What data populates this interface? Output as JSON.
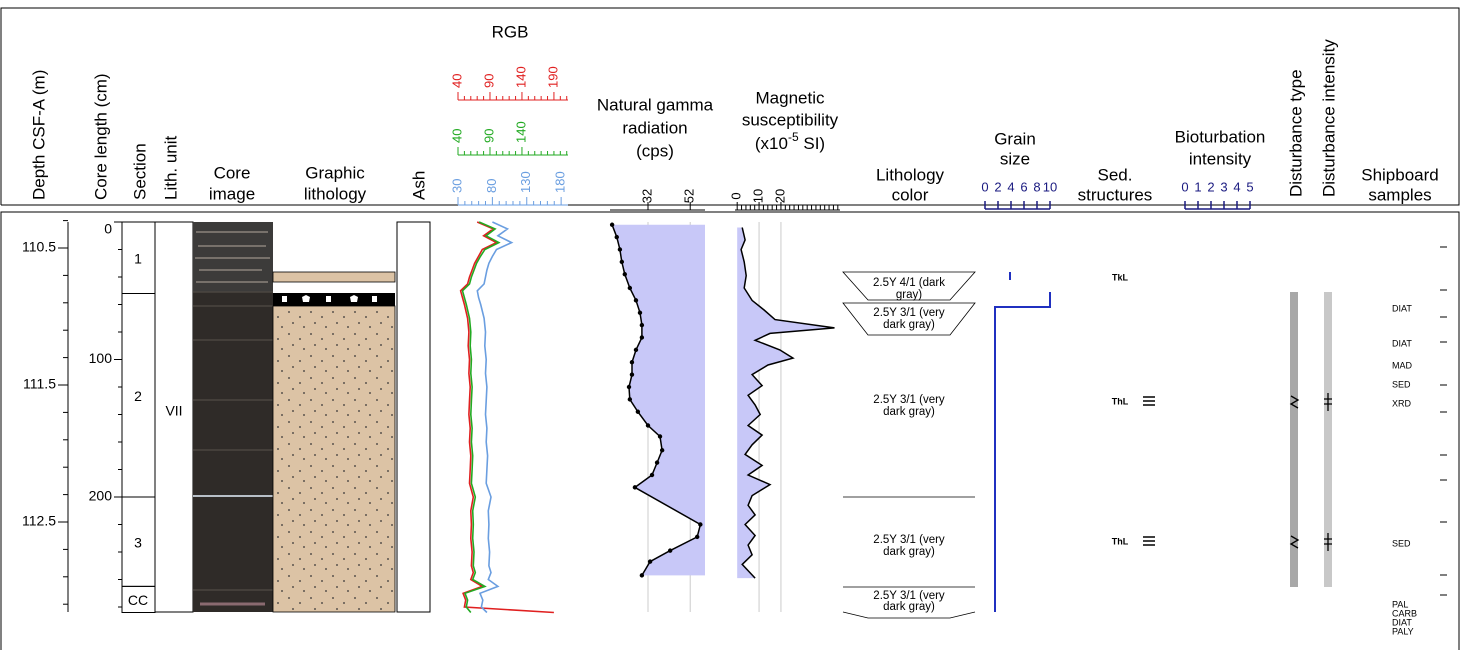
{
  "header": {
    "depth": "Depth CSF-A (m)",
    "core_length": "Core length (cm)",
    "section": "Section",
    "lith_unit": "Lith. unit",
    "core_image": [
      "Core",
      "image"
    ],
    "graphic_lithology": [
      "Graphic",
      "lithology"
    ],
    "ash": "Ash",
    "rgb": "RGB",
    "gamma": [
      "Natural gamma",
      "radiation",
      "(cps)"
    ],
    "ms": [
      "Magnetic",
      "susceptibility"
    ],
    "ms_unit": {
      "prefix": "(x10",
      "exponent": "-5",
      "suffix": " SI)"
    },
    "lithology_color": [
      "Lithology",
      "color"
    ],
    "grain_size": [
      "Grain",
      "size"
    ],
    "sed_structures": [
      "Sed.",
      "structures"
    ],
    "bioturbation": [
      "Bioturbation",
      "intensity"
    ],
    "disturbance_type": "Disturbance type",
    "disturbance_intensity": "Disturbance intensity",
    "shipboard_samples": [
      "Shipboard",
      "samples"
    ]
  },
  "depth_axis": {
    "ticks": [
      110.5,
      111.5,
      112.5
    ],
    "minor_ticks": [
      110.3,
      110.7,
      110.9,
      111.1,
      111.3,
      111.7,
      111.9,
      112.1,
      112.3,
      112.7,
      112.9,
      113.1
    ]
  },
  "core_length_axis": {
    "ticks": [
      0,
      100,
      200
    ],
    "minor_ticks": [
      20,
      40,
      60,
      80,
      120,
      140,
      160,
      180,
      220,
      240,
      260,
      280
    ]
  },
  "sections": [
    {
      "name": "1",
      "top_cm": 0,
      "bottom_cm": 52
    },
    {
      "name": "2",
      "top_cm": 52,
      "bottom_cm": 200
    },
    {
      "name": "3",
      "top_cm": 200,
      "bottom_cm": 265
    },
    {
      "name": "CC",
      "top_cm": 265,
      "bottom_cm": 284
    }
  ],
  "lith_unit": {
    "name": "VII"
  },
  "rgb": {
    "depth_cm": [
      0,
      5,
      10,
      15,
      20,
      25,
      30,
      35,
      40,
      45,
      50,
      55,
      60,
      70,
      80,
      90,
      100,
      110,
      120,
      130,
      140,
      150,
      160,
      170,
      180,
      190,
      200,
      210,
      220,
      230,
      240,
      250,
      255,
      260,
      265,
      270,
      275,
      280,
      284
    ],
    "channels": [
      {
        "name": "red",
        "color": "#e02020",
        "lim": [
          40,
          212
        ],
        "ticks": [
          40,
          90,
          140,
          190
        ],
        "minor_ticks": [
          50,
          60,
          70,
          80,
          100,
          110,
          120,
          130,
          150,
          160,
          170,
          180,
          200,
          210
        ],
        "values": [
          70,
          95,
          80,
          100,
          78,
          72,
          66,
          62,
          58,
          55,
          44,
          47,
          50,
          55,
          57,
          56,
          58,
          57,
          59,
          58,
          57,
          59,
          58,
          60,
          59,
          58,
          64,
          60,
          61,
          60,
          62,
          61,
          64,
          60,
          78,
          48,
          52,
          50,
          190
        ]
      },
      {
        "name": "green",
        "color": "#22aa22",
        "lim": [
          40,
          212
        ],
        "ticks": [
          40,
          90,
          140
        ],
        "minor_ticks": [
          50,
          60,
          70,
          80,
          100,
          110,
          120,
          130,
          150,
          160,
          170,
          180,
          190,
          200,
          210
        ],
        "values": [
          73,
          98,
          84,
          104,
          82,
          75,
          69,
          65,
          61,
          58,
          47,
          50,
          53,
          58,
          60,
          59,
          61,
          60,
          62,
          61,
          60,
          62,
          61,
          63,
          62,
          61,
          67,
          63,
          64,
          63,
          65,
          64,
          67,
          63,
          82,
          51,
          55,
          53,
          60
        ]
      },
      {
        "name": "blue",
        "color": "#6a9ee0",
        "lim": [
          30,
          190
        ],
        "ticks": [
          30,
          80,
          130,
          180
        ],
        "minor_ticks": [
          40,
          50,
          60,
          70,
          90,
          100,
          110,
          120,
          140,
          150,
          160,
          170
        ],
        "values": [
          80,
          102,
          88,
          108,
          86,
          80,
          75,
          72,
          70,
          68,
          58,
          60,
          63,
          68,
          70,
          69,
          71,
          70,
          72,
          71,
          70,
          72,
          71,
          73,
          72,
          71,
          78,
          74,
          75,
          74,
          76,
          75,
          78,
          74,
          88,
          62,
          66,
          64,
          72
        ]
      }
    ]
  },
  "gamma": {
    "xlim": [
      14,
      59
    ],
    "ticks": [
      32,
      52
    ],
    "fill": "#c8c8f8",
    "depth_cm": [
      2,
      11,
      20,
      29,
      38,
      48,
      57,
      66,
      75,
      84,
      93,
      102,
      111,
      120,
      129,
      138,
      148,
      156,
      166,
      175,
      184,
      193,
      220,
      229,
      239,
      247,
      257
    ],
    "values": [
      15,
      17.2,
      18.7,
      19.6,
      21,
      23.4,
      26.3,
      28.2,
      29.1,
      29.1,
      26.3,
      24.4,
      24.4,
      23,
      23.4,
      27.2,
      32,
      37.7,
      38.7,
      36.3,
      33.9,
      25.8,
      56.8,
      55.3,
      42.5,
      33,
      29.1
    ]
  },
  "ms": {
    "xlim": [
      -1,
      47
    ],
    "ticks": [
      0,
      10,
      20
    ],
    "fill": "#c8c8f8",
    "minor_ticks": [
      2,
      4,
      6,
      8,
      12,
      14,
      16,
      18,
      22,
      24,
      26,
      28,
      30,
      32,
      34,
      36,
      38,
      40,
      42,
      44,
      46
    ],
    "depth_cm": [
      4,
      13,
      20,
      29,
      39,
      48,
      57,
      64,
      71,
      77,
      81,
      86,
      93,
      99,
      104,
      111,
      119,
      126,
      133,
      140,
      148,
      155,
      162,
      169,
      177,
      184,
      191,
      199,
      206,
      213,
      220,
      228,
      235,
      242,
      249,
      259
    ],
    "values": [
      2.3,
      3.6,
      1.8,
      3.2,
      4.1,
      3.2,
      6.8,
      12.3,
      17.3,
      44.5,
      15,
      8.2,
      19.5,
      25.5,
      14.1,
      6.8,
      11.4,
      5,
      8.2,
      10.5,
      5,
      11.4,
      6.8,
      3.6,
      11.4,
      5,
      15,
      6.8,
      5,
      8.2,
      3.6,
      8.2,
      5,
      6.8,
      2.3,
      8.2
    ]
  },
  "lithology_colors": [
    {
      "lines": [
        "2.5Y 4/1 (dark",
        "gray)"
      ]
    },
    {
      "lines": [
        "2.5Y 3/1 (very",
        "dark gray)"
      ]
    },
    {
      "lines": [
        "2.5Y 3/1 (very",
        "dark gray)"
      ]
    },
    {
      "lines": [
        "2.5Y 3/1 (very",
        "dark gray)"
      ]
    },
    {
      "lines": [
        "2.5Y 3/1 (very",
        "dark gray)"
      ]
    }
  ],
  "grain_size": {
    "lim": [
      0,
      10
    ],
    "ticks": [
      0,
      2,
      4,
      6,
      8,
      10
    ],
    "color": "#1a1a80"
  },
  "sed_structures": [
    "TkL",
    "ThL",
    "ThL"
  ],
  "bioturbation": {
    "lim": [
      0,
      5
    ],
    "ticks": [
      0,
      1,
      2,
      3,
      4,
      5
    ],
    "color": "#1a1a80"
  },
  "shipboard_samples": [
    "DIAT",
    "DIAT",
    "MAD",
    "SED",
    "XRD",
    "SED",
    "PAL",
    "CARB",
    "DIAT",
    "PALY"
  ]
}
